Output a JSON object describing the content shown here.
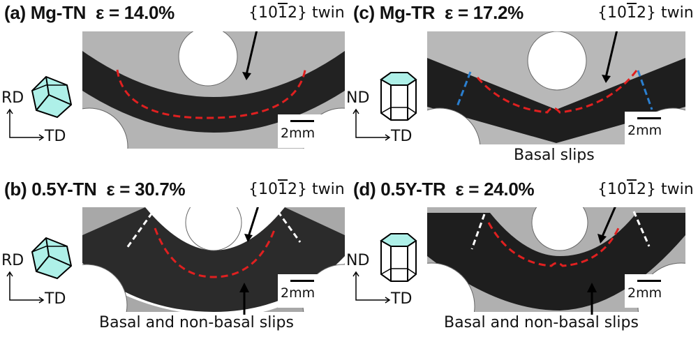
{
  "panels": [
    {
      "title": "(a) Mg-TN  ε = 14.0%",
      "twin_prefix": "{10",
      "twin_bar": "1",
      "twin_suffix": "2} twin",
      "scale": "2mm",
      "axis_y": "RD",
      "axis_x": "TD",
      "caption": "",
      "crystal": "hexagonal prism lying on side"
    },
    {
      "title": "(b) 0.5Y-TN  ε = 30.7%",
      "twin_prefix": "{10",
      "twin_bar": "1",
      "twin_suffix": "2} twin",
      "scale": "2mm",
      "axis_y": "RD",
      "axis_x": "TD",
      "caption": "Basal and non-basal slips",
      "crystal": "hexagonal prism lying on side"
    },
    {
      "title": "(c) Mg-TR  ε = 17.2%",
      "twin_prefix": "{10",
      "twin_bar": "1",
      "twin_suffix": "2} twin",
      "scale": "2mm",
      "axis_y": "ND",
      "axis_x": "TD",
      "caption": "Basal slips",
      "crystal": "upright hexagonal prism"
    },
    {
      "title": "(d) 0.5Y-TR  ε = 24.0%",
      "twin_prefix": "{10",
      "twin_bar": "1",
      "twin_suffix": "2} twin",
      "scale": "2mm",
      "axis_y": "ND",
      "axis_x": "TD",
      "caption": "Basal and non-basal slips",
      "crystal": "upright hexagonal prism"
    }
  ],
  "colors": {
    "twin_line": "#e02020",
    "slip_band_c": "#2a7fd0",
    "slip_band_bd": "#ffffff",
    "crystal_face": "#aef0e8"
  }
}
